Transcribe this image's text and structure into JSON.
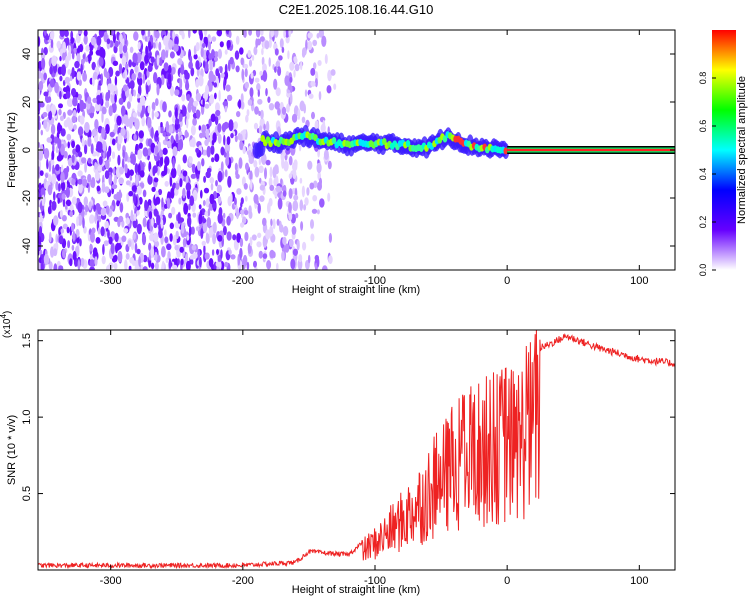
{
  "title": "C2E1.2025.108.16.44.G10",
  "chart_data": [
    {
      "type": "heatmap",
      "xlabel": "Height of straight line (km)",
      "ylabel": "Frequency (Hz)",
      "xlim": [
        -355,
        127
      ],
      "ylim": [
        -50,
        50
      ],
      "x_ticks": [
        -300,
        -200,
        -100,
        0,
        100
      ],
      "y_ticks": [
        -40,
        -20,
        0,
        20,
        40
      ],
      "colorbar": {
        "label": "Normalized spectral amplitude",
        "range": [
          0,
          1
        ],
        "ticks": [
          "0.0",
          "0.2",
          "0.4",
          "0.6",
          "0.8"
        ],
        "tick_values": [
          0.0,
          0.2,
          0.4,
          0.6,
          0.8
        ],
        "colors": [
          "#ffffff",
          "#6600ff",
          "#0000ff",
          "#00ffff",
          "#00ff00",
          "#ffff00",
          "#ff0000"
        ]
      },
      "signal_track": [
        {
          "x": -185,
          "y": 4
        },
        {
          "x": -170,
          "y": 3
        },
        {
          "x": -155,
          "y": 6
        },
        {
          "x": -140,
          "y": 4
        },
        {
          "x": -120,
          "y": 2
        },
        {
          "x": -100,
          "y": 3
        },
        {
          "x": -80,
          "y": 2
        },
        {
          "x": -60,
          "y": 1
        },
        {
          "x": -45,
          "y": 6
        },
        {
          "x": -30,
          "y": 2
        },
        {
          "x": -15,
          "y": 1
        },
        {
          "x": 0,
          "y": 0
        },
        {
          "x": 127,
          "y": 0
        }
      ]
    },
    {
      "type": "line",
      "xlabel": "Height of straight line (km)",
      "ylabel": "SNR (10 * v/v)",
      "yscale_label": "(x10",
      "yscale_exp": "4",
      "xlim": [
        -355,
        127
      ],
      "ylim": [
        0,
        1.57
      ],
      "x_ticks": [
        -300,
        -200,
        -100,
        0,
        100
      ],
      "y_ticks": [
        0.5,
        1.0,
        1.5
      ],
      "y_tick_labels": [
        "0.5",
        "1.0",
        "1.5"
      ],
      "series": [
        {
          "color": "#ee2222",
          "points": [
            {
              "x": -355,
              "y": 0.03
            },
            {
              "x": -200,
              "y": 0.03
            },
            {
              "x": -160,
              "y": 0.05
            },
            {
              "x": -150,
              "y": 0.12
            },
            {
              "x": -120,
              "y": 0.1
            },
            {
              "x": -100,
              "y": 0.25
            },
            {
              "x": -80,
              "y": 0.45
            },
            {
              "x": -60,
              "y": 0.7
            },
            {
              "x": -40,
              "y": 0.95
            },
            {
              "x": -20,
              "y": 1.1
            },
            {
              "x": 0,
              "y": 1.15
            },
            {
              "x": 10,
              "y": 1.2
            },
            {
              "x": 25,
              "y": 1.45
            },
            {
              "x": 45,
              "y": 1.53
            },
            {
              "x": 70,
              "y": 1.45
            },
            {
              "x": 100,
              "y": 1.38
            },
            {
              "x": 127,
              "y": 1.35
            }
          ]
        }
      ]
    }
  ]
}
